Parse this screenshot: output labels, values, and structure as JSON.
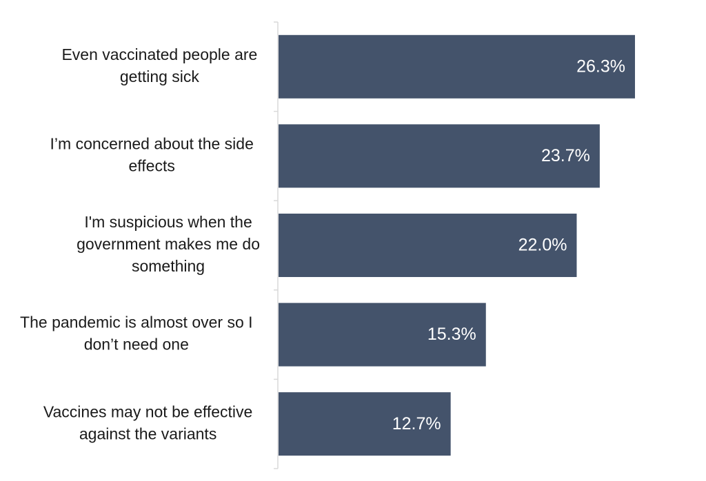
{
  "chart_data": {
    "type": "bar",
    "orientation": "horizontal",
    "categories": [
      "Even vaccinated people are getting sick",
      "I’m concerned about the side effects",
      "I'm suspicious when the government makes me do something",
      "The pandemic is almost over so I don’t need one",
      "Vaccines may not be effective against the variants"
    ],
    "category_lines": [
      [
        "Even vaccinated people are",
        "getting sick"
      ],
      [
        "I’m concerned about the side",
        "effects"
      ],
      [
        "I'm suspicious when the",
        "government makes me do",
        "something"
      ],
      [
        "The pandemic is almost over so I",
        "don’t need one"
      ],
      [
        "Vaccines may not be effective",
        "against the variants"
      ]
    ],
    "values": [
      26.3,
      23.7,
      22.0,
      15.3,
      12.7
    ],
    "value_labels": [
      "26.3%",
      "23.7%",
      "22.0%",
      "15.3%",
      "12.7%"
    ],
    "xlim": [
      0,
      30
    ],
    "grid": false,
    "legend": "none",
    "title": "",
    "xlabel": "",
    "ylabel": "",
    "bar_color": "#44536b",
    "axis_color": "#d9d9d9",
    "label_color": "#1a1a1a",
    "value_label_color": "#ffffff"
  }
}
